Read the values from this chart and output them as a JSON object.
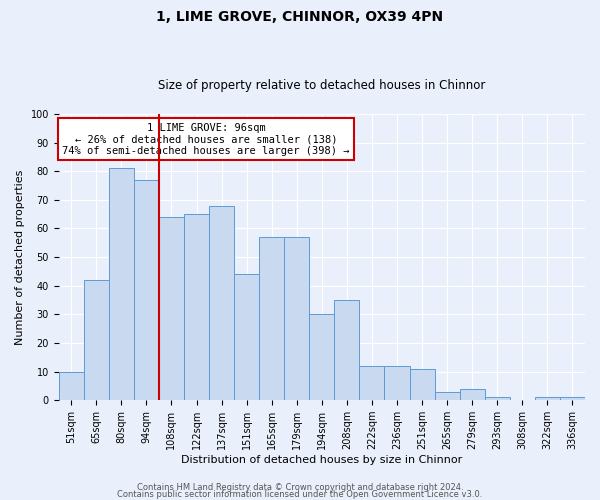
{
  "title1": "1, LIME GROVE, CHINNOR, OX39 4PN",
  "title2": "Size of property relative to detached houses in Chinnor",
  "xlabel": "Distribution of detached houses by size in Chinnor",
  "ylabel": "Number of detached properties",
  "categories": [
    "51sqm",
    "65sqm",
    "80sqm",
    "94sqm",
    "108sqm",
    "122sqm",
    "137sqm",
    "151sqm",
    "165sqm",
    "179sqm",
    "194sqm",
    "208sqm",
    "222sqm",
    "236sqm",
    "251sqm",
    "265sqm",
    "279sqm",
    "293sqm",
    "308sqm",
    "322sqm",
    "336sqm"
  ],
  "values": [
    10,
    42,
    81,
    77,
    64,
    65,
    68,
    44,
    57,
    57,
    30,
    35,
    12,
    12,
    11,
    3,
    4,
    1,
    0,
    1,
    1
  ],
  "bar_color": "#c9d9f0",
  "bar_edge_color": "#5b9bd5",
  "vline_x": 3.5,
  "vline_color": "#cc0000",
  "annotation_text": "1 LIME GROVE: 96sqm\n← 26% of detached houses are smaller (138)\n74% of semi-detached houses are larger (398) →",
  "annotation_box_color": "white",
  "annotation_box_edge_color": "#cc0000",
  "footer1": "Contains HM Land Registry data © Crown copyright and database right 2024.",
  "footer2": "Contains public sector information licensed under the Open Government Licence v3.0.",
  "ylim": [
    0,
    100
  ],
  "yticks": [
    0,
    10,
    20,
    30,
    40,
    50,
    60,
    70,
    80,
    90,
    100
  ],
  "bg_color": "#eaf0fb",
  "plot_bg_color": "#eaf0fb",
  "grid_color": "#ffffff",
  "title1_fontsize": 10,
  "title2_fontsize": 8.5,
  "xlabel_fontsize": 8,
  "ylabel_fontsize": 8,
  "tick_fontsize": 7,
  "footer_fontsize": 6,
  "annot_fontsize": 7.5
}
